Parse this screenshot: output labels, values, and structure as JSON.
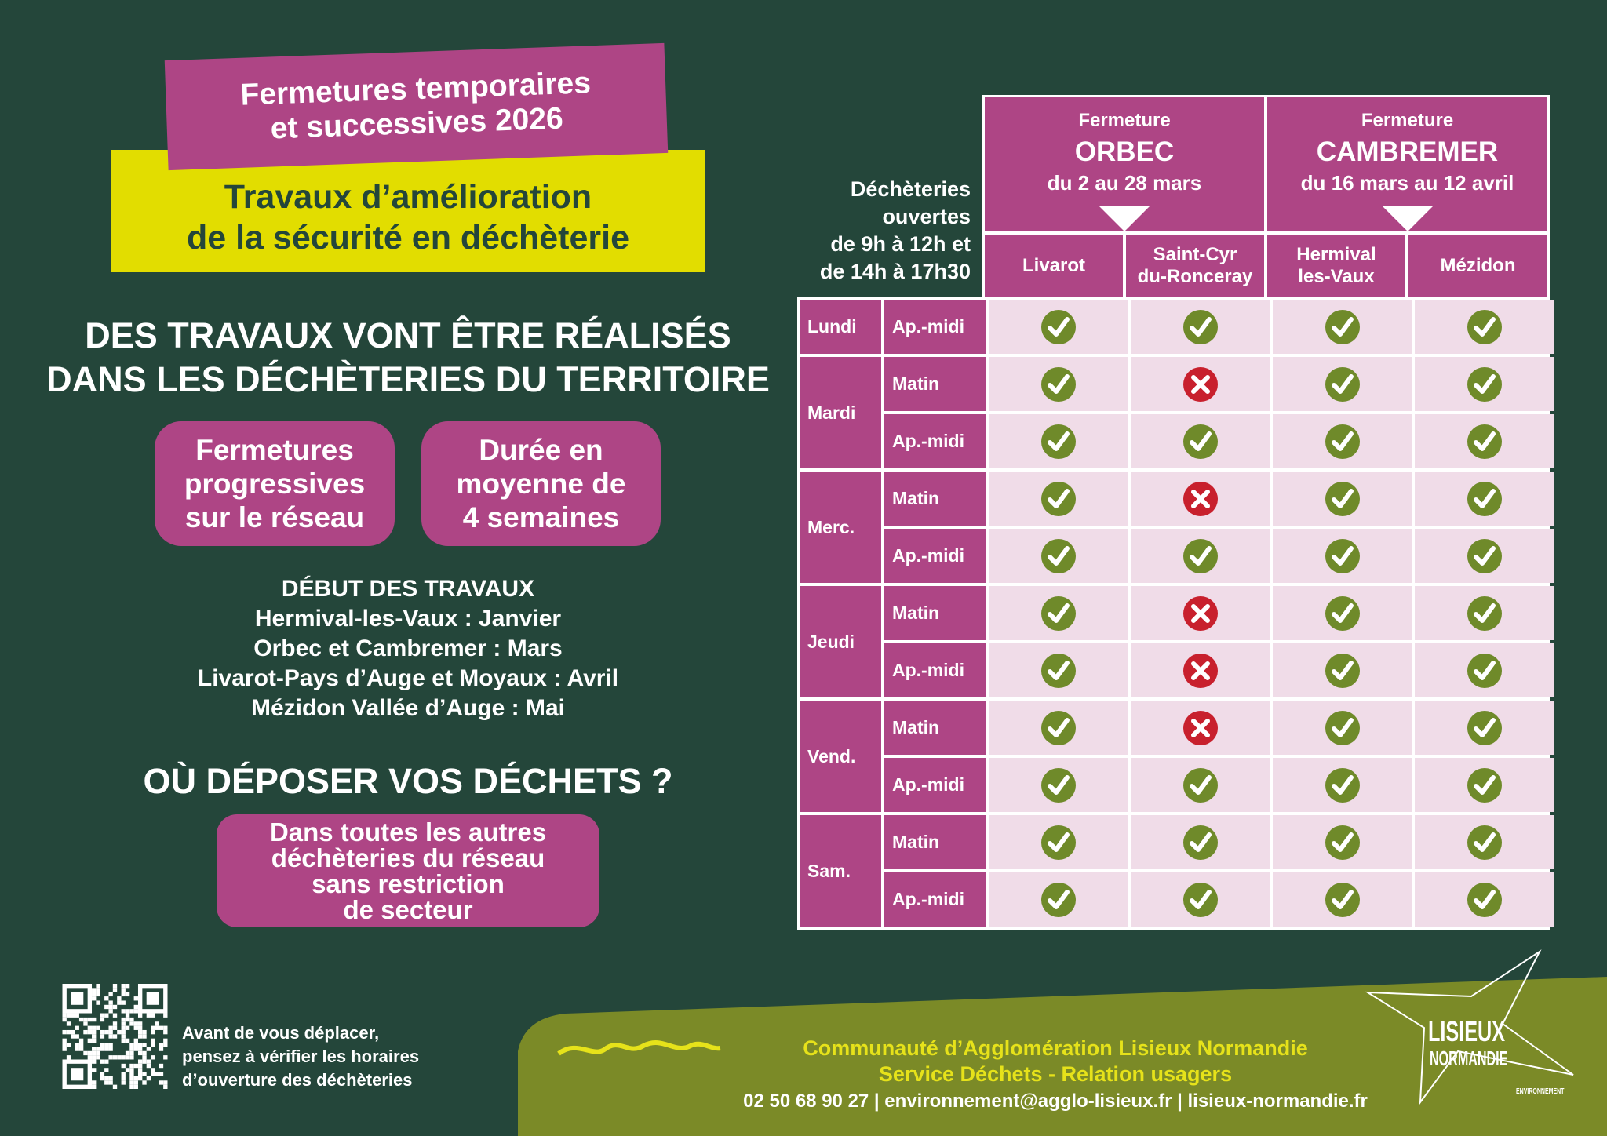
{
  "banner": {
    "line1": "Fermetures temporaires",
    "line2": "et successives 2026"
  },
  "subtitle": {
    "line1": "Travaux d’amélioration",
    "line2": "de la sécurité en déchèterie"
  },
  "headline": {
    "line1": "DES TRAVAUX VONT ÊTRE RÉALISÉS",
    "line2": "DANS LES DÉCHÈTERIES DU TERRITOIRE"
  },
  "pills": [
    {
      "lines": [
        "Fermetures",
        "progressives",
        "sur le réseau"
      ]
    },
    {
      "lines": [
        "Durée en",
        "moyenne de",
        "4 semaines"
      ]
    }
  ],
  "debut": {
    "title": "DÉBUT DES TRAVAUX",
    "lines": [
      "Hermival-les-Vaux : Janvier",
      "Orbec et Cambremer : Mars",
      "Livarot-Pays d’Auge et Moyaux  : Avril",
      "Mézidon Vallée d’Auge : Mai"
    ]
  },
  "where": {
    "title": "OÙ DÉPOSER VOS DÉCHETS ?",
    "lines": [
      "Dans toutes les autres",
      "déchèteries du réseau",
      "sans restriction",
      "de secteur"
    ]
  },
  "table": {
    "side_label": [
      "Déchèteries",
      "ouvertes",
      "de 9h à 12h et",
      "de 14h à  17h30"
    ],
    "groups": [
      {
        "label": "Fermeture",
        "name": "ORBEC",
        "dates": "du 2 au 28 mars"
      },
      {
        "label": "Fermeture",
        "name": "CAMBREMER",
        "dates": "du 16 mars au 12 avril"
      }
    ],
    "columns": [
      [
        "Livarot"
      ],
      [
        "Saint-Cyr",
        "du-Ronceray"
      ],
      [
        "Hermival",
        "les-Vaux"
      ],
      [
        "Mézidon"
      ]
    ],
    "days": [
      {
        "day": "Lundi",
        "slots": [
          {
            "period": "Ap.-midi",
            "status": [
              "open",
              "open",
              "open",
              "open"
            ]
          }
        ]
      },
      {
        "day": "Mardi",
        "slots": [
          {
            "period": "Matin",
            "status": [
              "open",
              "closed",
              "open",
              "open"
            ]
          },
          {
            "period": "Ap.-midi",
            "status": [
              "open",
              "open",
              "open",
              "open"
            ]
          }
        ]
      },
      {
        "day": "Merc.",
        "slots": [
          {
            "period": "Matin",
            "status": [
              "open",
              "closed",
              "open",
              "open"
            ]
          },
          {
            "period": "Ap.-midi",
            "status": [
              "open",
              "open",
              "open",
              "open"
            ]
          }
        ]
      },
      {
        "day": "Jeudi",
        "slots": [
          {
            "period": "Matin",
            "status": [
              "open",
              "closed",
              "open",
              "open"
            ]
          },
          {
            "period": "Ap.-midi",
            "status": [
              "open",
              "closed",
              "open",
              "open"
            ]
          }
        ]
      },
      {
        "day": "Vend.",
        "slots": [
          {
            "period": "Matin",
            "status": [
              "open",
              "closed",
              "open",
              "open"
            ]
          },
          {
            "period": "Ap.-midi",
            "status": [
              "open",
              "open",
              "open",
              "open"
            ]
          }
        ]
      },
      {
        "day": "Sam.",
        "slots": [
          {
            "period": "Matin",
            "status": [
              "open",
              "open",
              "open",
              "open"
            ]
          },
          {
            "period": "Ap.-midi",
            "status": [
              "open",
              "open",
              "open",
              "open"
            ]
          }
        ]
      }
    ]
  },
  "qr_text": [
    "Avant de vous déplacer,",
    "pensez à vérifier les horaires",
    "d’ouverture des déchèteries"
  ],
  "footer": {
    "org": "Communauté d’Agglomération Lisieux Normandie",
    "service": "Service Déchets - Relation usagers",
    "contact": "02 50 68 90 27 | environnement@agglo-lisieux.fr | lisieux-normandie.fr"
  },
  "logo": {
    "line1": "LISIEUX",
    "line2": "NORMANDIE",
    "tag": "ENVIRONNEMENT"
  },
  "colors": {
    "background": "#24463a",
    "magenta": "#ae4585",
    "yellow": "#e2dd00",
    "cell": "#f0dce8",
    "open": "#6f8a2a",
    "closed": "#c8202d",
    "footer": "#7b8a27"
  },
  "icons": {
    "open": "check-circle-icon",
    "closed": "cross-circle-icon"
  }
}
